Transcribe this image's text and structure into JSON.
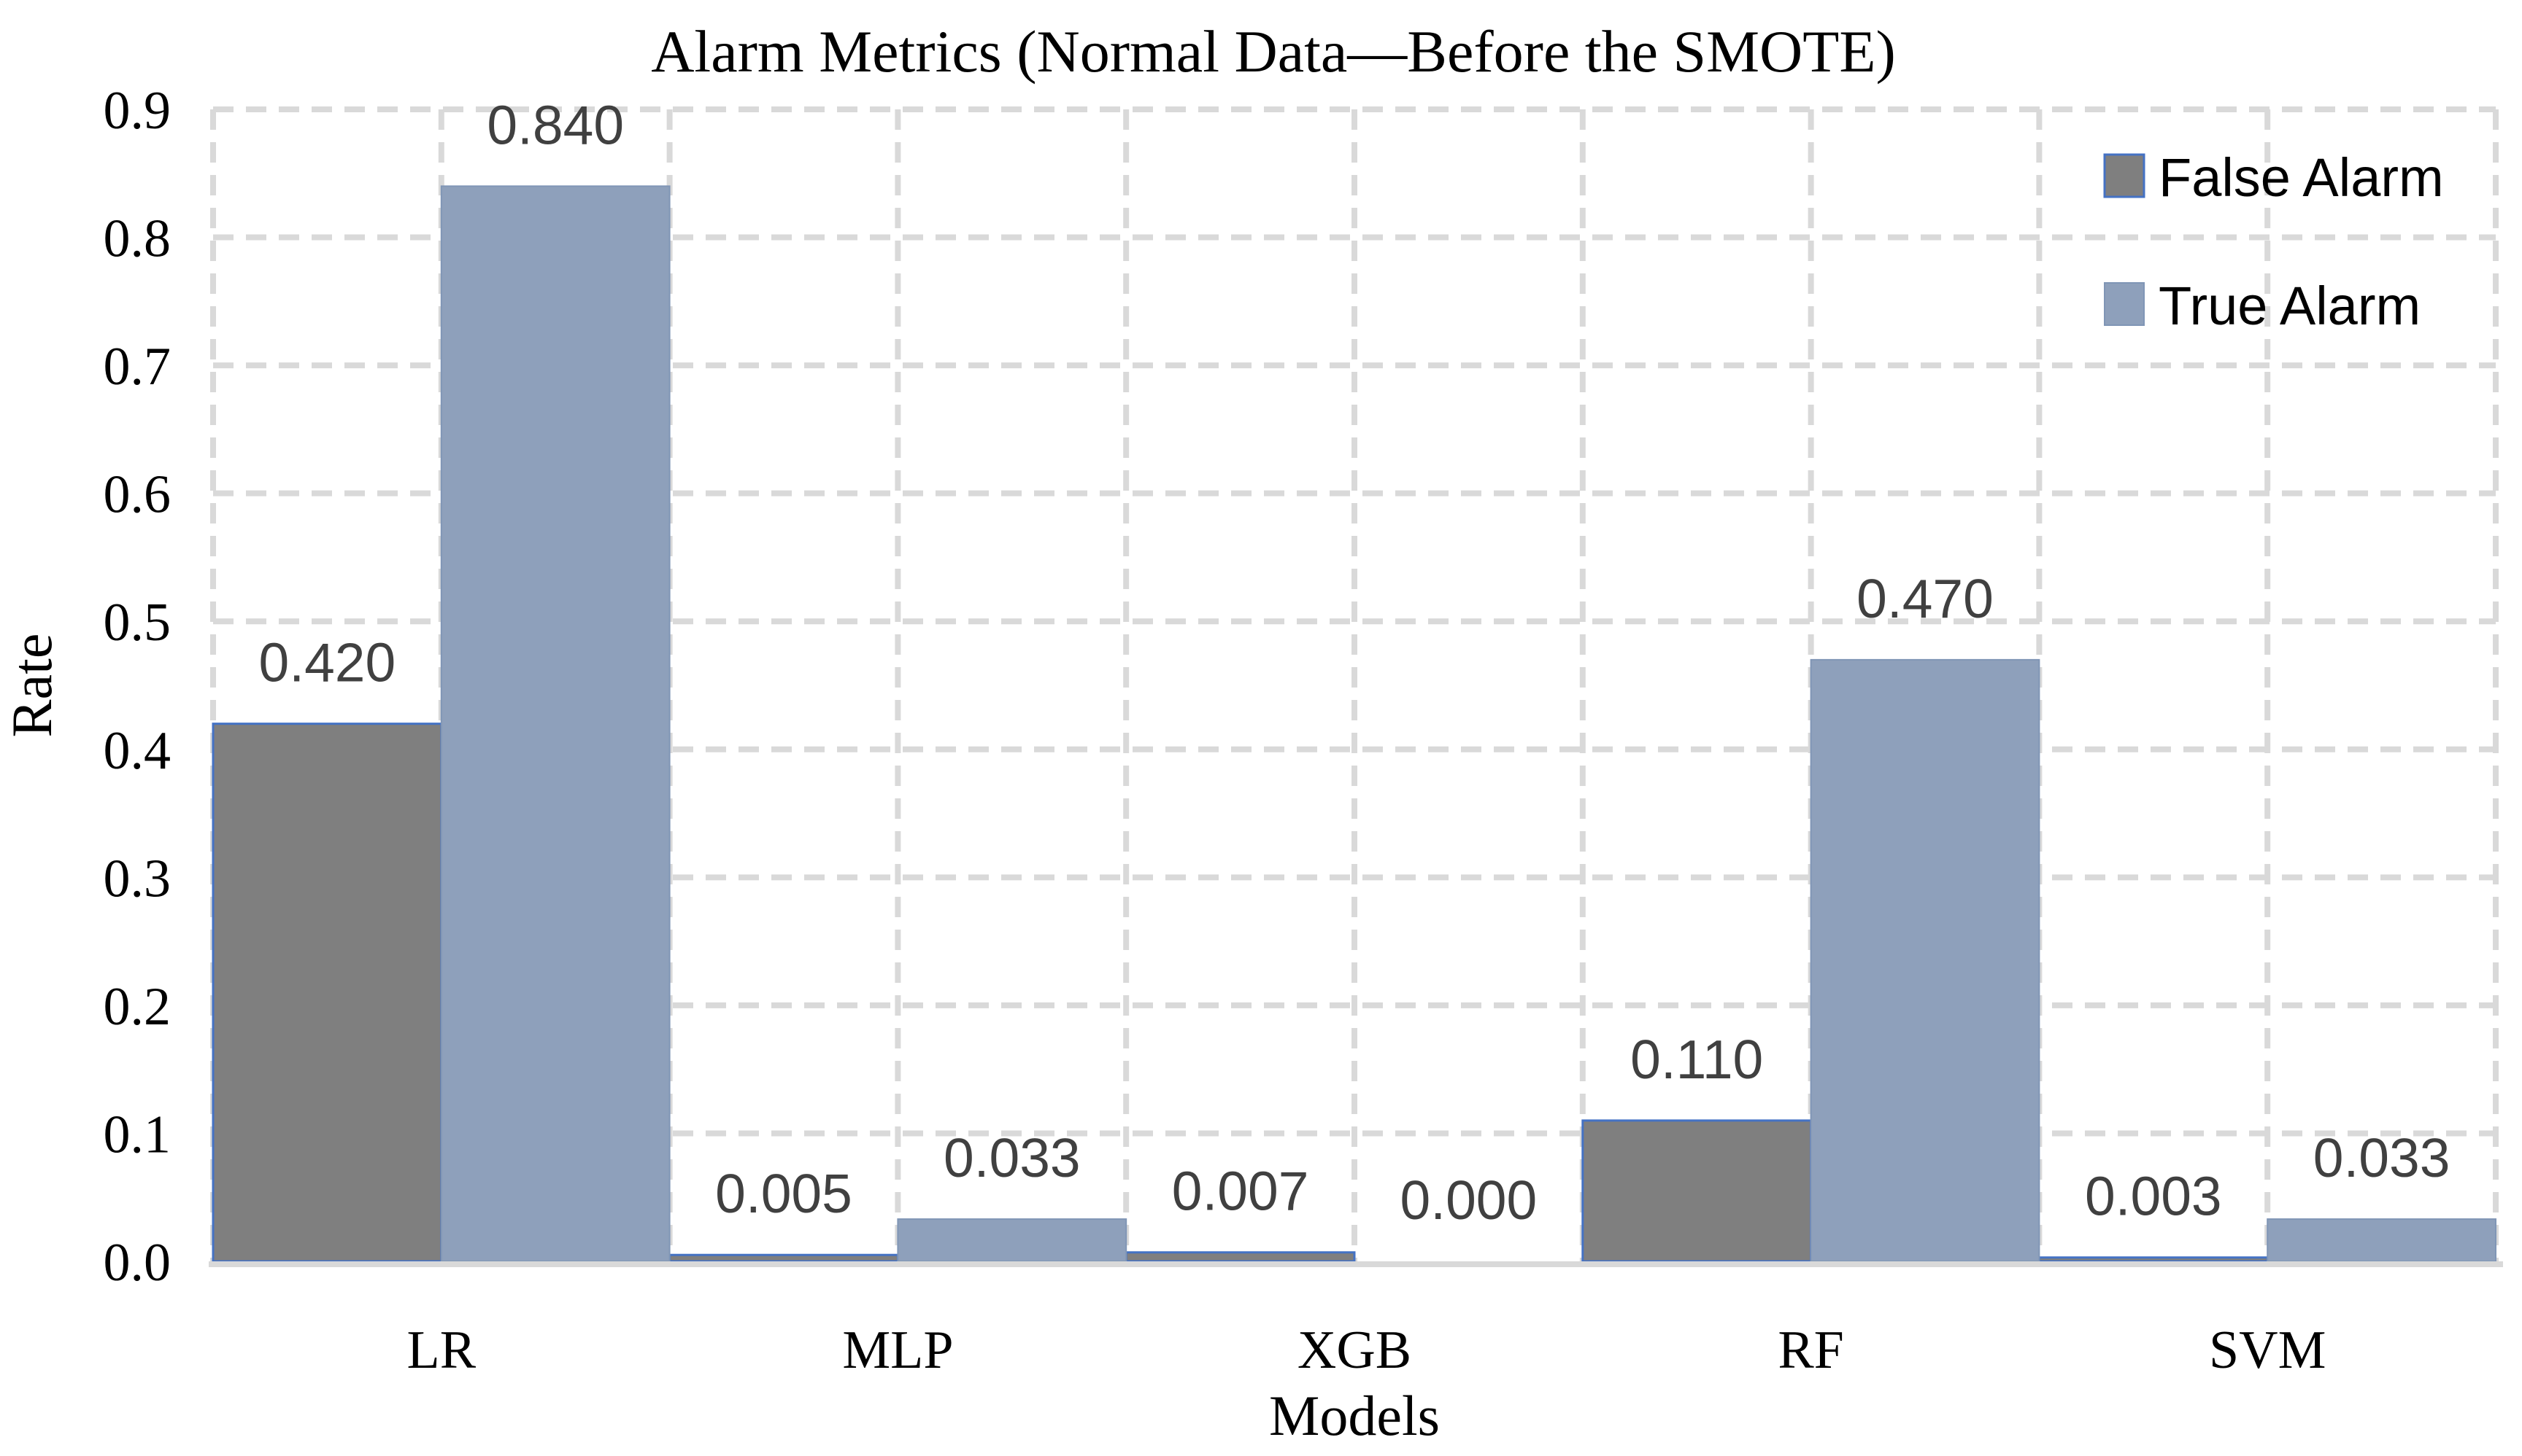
{
  "title": "Alarm Metrics (Normal Data—Before the SMOTE)",
  "legend": {
    "position": "top-right",
    "items": [
      {
        "label": "False Alarm",
        "color": "#7F7F7F",
        "border": "#4472C4"
      },
      {
        "label": "True Alarm",
        "color": "#8EA0BB",
        "border": "#8096B6"
      }
    ]
  },
  "chart_data": {
    "type": "bar",
    "title": "Alarm Metrics (Normal Data—Before the SMOTE)",
    "xlabel": "Models",
    "ylabel": "Rate",
    "categories": [
      "LR",
      "MLP",
      "XGB",
      "RF",
      "SVM"
    ],
    "series": [
      {
        "name": "False Alarm",
        "values": [
          0.42,
          0.005,
          0.007,
          0.11,
          0.003
        ],
        "labels": [
          "0.420",
          "0.005",
          "0.007",
          "0.110",
          "0.003"
        ],
        "color": "#7F7F7F",
        "border_color": "#4472C4"
      },
      {
        "name": "True Alarm",
        "values": [
          0.84,
          0.033,
          0.0,
          0.47,
          0.033
        ],
        "labels": [
          "0.840",
          "0.033",
          "0.000",
          "0.470",
          "0.033"
        ],
        "color": "#8EA0BB",
        "border_color": "#8096B6"
      }
    ],
    "y_axis": {
      "min": 0.0,
      "max": 0.9,
      "tick_step": 0.1,
      "tick_labels": [
        "0.0",
        "0.1",
        "0.2",
        "0.3",
        "0.4",
        "0.5",
        "0.6",
        "0.7",
        "0.8",
        "0.9"
      ]
    },
    "grid": {
      "horizontal": true,
      "vertical": true,
      "style": "dashed",
      "color": "#D9D9D9"
    },
    "axis_line_color": "#D9D9D9",
    "data_label_color": "#404040",
    "legend_position": "top-right"
  }
}
